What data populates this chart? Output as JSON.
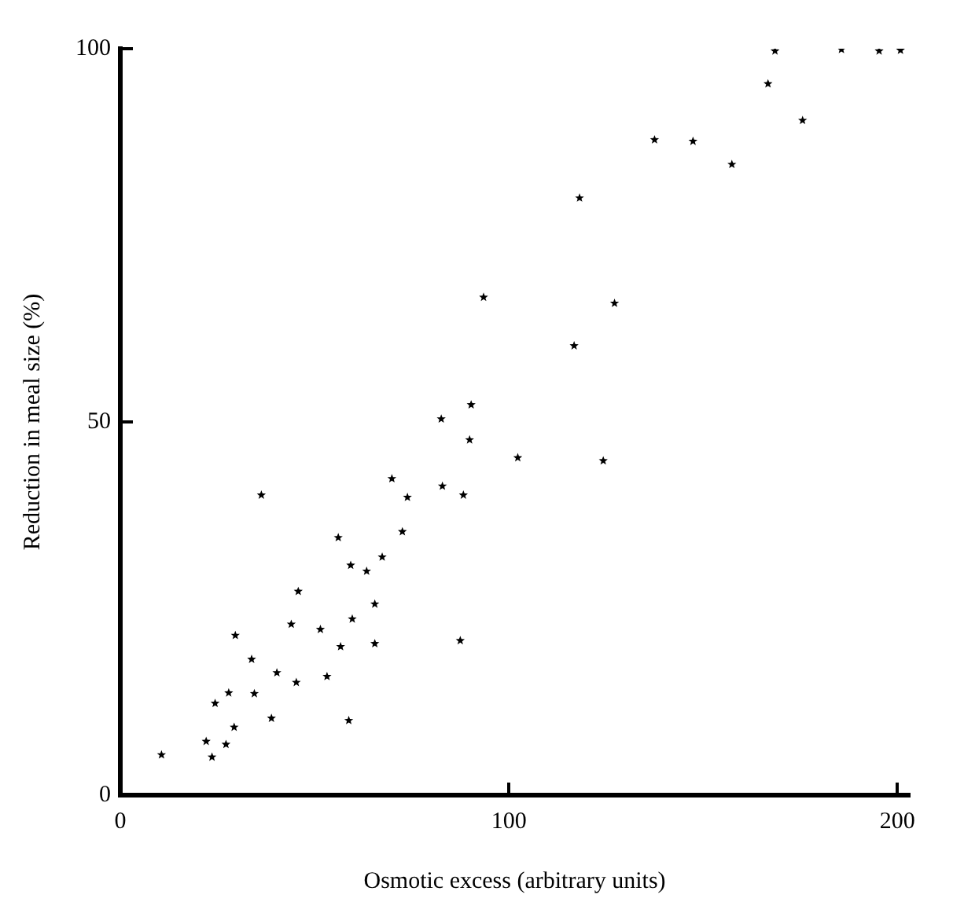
{
  "chart_data": {
    "type": "scatter",
    "xlabel": "Osmotic excess (arbitrary units)",
    "ylabel": "Reduction in meal size (%)",
    "marker": "star",
    "grid": false,
    "xlim": [
      0,
      203
    ],
    "ylim": [
      0,
      100
    ],
    "xticks": [
      0,
      100,
      200
    ],
    "yticks": [
      0,
      50,
      100
    ],
    "series": [
      {
        "color": "#000000",
        "x": [
          10.6,
          23.6,
          22.1,
          27.2,
          29.3,
          24.4,
          27.9,
          38.9,
          34.5,
          33.8,
          29.6,
          40.3,
          45.3,
          44,
          45.8,
          36.3,
          51.5,
          53.2,
          56.7,
          59.7,
          58.8,
          56.1,
          59.3,
          63.4,
          65.5,
          65.5,
          67.4,
          87.5,
          72.6,
          69.9,
          73.9,
          82.9,
          88.3,
          82.6,
          90.3,
          89.9,
          102.3,
          124.3,
          116.8,
          127.2,
          118.2,
          93.5,
          137.5,
          147.4,
          157.4,
          166.7,
          168.5,
          175.6,
          185.6,
          195.3,
          200.8
        ],
        "values": [
          5.4,
          5.1,
          7.2,
          6.8,
          9.1,
          12.3,
          13.7,
          10.3,
          13.6,
          18.2,
          21.4,
          16.4,
          15.1,
          22.9,
          27.3,
          40.2,
          22.2,
          15.9,
          19.9,
          23.6,
          10,
          34.5,
          30.8,
          30,
          25.6,
          20.3,
          31.9,
          20.7,
          35.3,
          42.4,
          39.9,
          41.4,
          40.2,
          50.4,
          52.3,
          47.6,
          45.2,
          44.8,
          60.2,
          65.9,
          80,
          66.7,
          87.8,
          87.6,
          84.5,
          95.3,
          99.7,
          90.4,
          99.9,
          99.7,
          99.8
        ]
      }
    ]
  }
}
